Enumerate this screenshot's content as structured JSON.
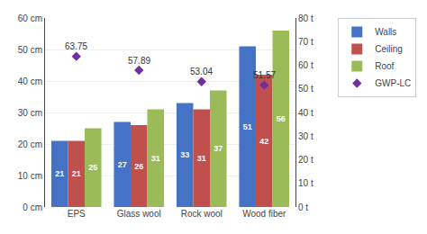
{
  "chart_data": {
    "type": "bar",
    "categories": [
      "EPS",
      "Glass wool",
      "Rock wool",
      "Wood fiber"
    ],
    "series": [
      {
        "name": "Walls",
        "type": "bar",
        "color": "#4472c4",
        "values": [
          21,
          27,
          33,
          51
        ]
      },
      {
        "name": "Ceiling",
        "type": "bar",
        "color": "#c0504d",
        "values": [
          21,
          26,
          31,
          42
        ]
      },
      {
        "name": "Roof",
        "type": "bar",
        "color": "#9bbb59",
        "values": [
          25,
          31,
          37,
          56
        ]
      },
      {
        "name": "GWP-LC",
        "type": "scatter",
        "axis": "y2",
        "marker": "diamond",
        "color": "#7030a0",
        "values": [
          63.75,
          57.89,
          53.04,
          51.57
        ]
      }
    ],
    "ylim": [
      0,
      60
    ],
    "yticks": [
      {
        "value": 0,
        "label": "0 cm"
      },
      {
        "value": 10,
        "label": "10 cm"
      },
      {
        "value": 20,
        "label": "20 cm"
      },
      {
        "value": 30,
        "label": "30 cm"
      },
      {
        "value": 40,
        "label": "40 cm"
      },
      {
        "value": 50,
        "label": "50 cm"
      },
      {
        "value": 60,
        "label": "60 cm"
      }
    ],
    "y2lim": [
      0,
      80
    ],
    "y2ticks": [
      {
        "value": 0,
        "label": "0 t"
      },
      {
        "value": 10,
        "label": "10 t"
      },
      {
        "value": 20,
        "label": "20 t"
      },
      {
        "value": 30,
        "label": "30 t"
      },
      {
        "value": 40,
        "label": "40 t"
      },
      {
        "value": 50,
        "label": "50 t"
      },
      {
        "value": 60,
        "label": "60 t"
      },
      {
        "value": 70,
        "label": "70 t"
      },
      {
        "value": 80,
        "label": "80 t"
      }
    ],
    "grid": true,
    "legend": "upper right",
    "data_labels": true
  }
}
